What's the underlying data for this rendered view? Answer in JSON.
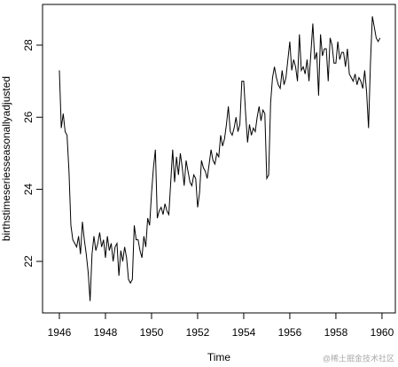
{
  "chart_data": {
    "type": "line",
    "x_label": "Time",
    "y_label": "birthstimeseriesseasonallyadjusted",
    "watermark": "@稀土掘金技术社区",
    "xlim": [
      1945.27,
      1960.58
    ],
    "ylim": [
      20.57,
      29.13
    ],
    "xticks": [
      1946,
      1948,
      1950,
      1952,
      1954,
      1956,
      1958,
      1960
    ],
    "yticks": [
      22,
      24,
      26,
      28
    ],
    "color": "#000000",
    "x": [
      1946,
      1946.083,
      1946.167,
      1946.25,
      1946.333,
      1946.417,
      1946.5,
      1946.583,
      1946.667,
      1946.75,
      1946.833,
      1946.917,
      1947,
      1947.083,
      1947.167,
      1947.25,
      1947.333,
      1947.417,
      1947.5,
      1947.583,
      1947.667,
      1947.75,
      1947.833,
      1947.917,
      1948,
      1948.083,
      1948.167,
      1948.25,
      1948.333,
      1948.417,
      1948.5,
      1948.583,
      1948.667,
      1948.75,
      1948.833,
      1948.917,
      1949,
      1949.083,
      1949.167,
      1949.25,
      1949.333,
      1949.417,
      1949.5,
      1949.583,
      1949.667,
      1949.75,
      1949.833,
      1949.917,
      1950,
      1950.083,
      1950.167,
      1950.25,
      1950.333,
      1950.417,
      1950.5,
      1950.583,
      1950.667,
      1950.75,
      1950.833,
      1950.917,
      1951,
      1951.083,
      1951.167,
      1951.25,
      1951.333,
      1951.417,
      1951.5,
      1951.583,
      1951.667,
      1951.75,
      1951.833,
      1951.917,
      1952,
      1952.083,
      1952.167,
      1952.25,
      1952.333,
      1952.417,
      1952.5,
      1952.583,
      1952.667,
      1952.75,
      1952.833,
      1952.917,
      1953,
      1953.083,
      1953.167,
      1953.25,
      1953.333,
      1953.417,
      1953.5,
      1953.583,
      1953.667,
      1953.75,
      1953.833,
      1953.917,
      1954,
      1954.083,
      1954.167,
      1954.25,
      1954.333,
      1954.417,
      1954.5,
      1954.583,
      1954.667,
      1954.75,
      1954.833,
      1954.917,
      1955,
      1955.083,
      1955.167,
      1955.25,
      1955.333,
      1955.417,
      1955.5,
      1955.583,
      1955.667,
      1955.75,
      1955.833,
      1955.917,
      1956,
      1956.083,
      1956.167,
      1956.25,
      1956.333,
      1956.417,
      1956.5,
      1956.583,
      1956.667,
      1956.75,
      1956.833,
      1956.917,
      1957,
      1957.083,
      1957.167,
      1957.25,
      1957.333,
      1957.417,
      1957.5,
      1957.583,
      1957.667,
      1957.75,
      1957.833,
      1957.917,
      1958,
      1958.083,
      1958.167,
      1958.25,
      1958.333,
      1958.417,
      1958.5,
      1958.583,
      1958.667,
      1958.75,
      1958.833,
      1958.917,
      1959,
      1959.083,
      1959.167,
      1959.25,
      1959.333,
      1959.417,
      1959.5,
      1959.583,
      1959.667,
      1959.75,
      1959.833,
      1959.917
    ],
    "values": [
      27.3,
      25.7,
      26.1,
      25.6,
      25.5,
      24.5,
      23.0,
      22.6,
      22.5,
      22.4,
      22.7,
      22.2,
      23.1,
      22.6,
      22.2,
      21.7,
      20.9,
      22.2,
      22.7,
      22.3,
      22.5,
      22.8,
      22.4,
      22.6,
      22.1,
      22.7,
      22.3,
      22.5,
      22.0,
      22.4,
      22.5,
      21.6,
      22.3,
      22.0,
      22.4,
      22.1,
      21.5,
      21.4,
      21.5,
      23.0,
      22.6,
      22.6,
      22.3,
      22.1,
      22.7,
      22.4,
      23.2,
      23.0,
      23.9,
      24.6,
      25.1,
      23.2,
      23.4,
      23.5,
      23.3,
      23.6,
      23.4,
      23.3,
      24.2,
      25.1,
      24.2,
      24.9,
      24.4,
      25.0,
      24.6,
      24.1,
      24.8,
      24.5,
      24.2,
      24.1,
      24.4,
      24.3,
      23.5,
      23.9,
      24.8,
      24.6,
      24.5,
      24.3,
      24.7,
      25.1,
      24.8,
      24.7,
      25.0,
      24.9,
      25.5,
      25.2,
      25.4,
      25.8,
      26.3,
      25.6,
      25.5,
      25.7,
      26.0,
      25.6,
      25.8,
      27.0,
      27.0,
      26.1,
      25.3,
      25.8,
      25.5,
      25.7,
      25.6,
      26.0,
      26.3,
      25.9,
      26.2,
      26.1,
      24.3,
      24.4,
      26.4,
      27.1,
      27.4,
      27.1,
      26.9,
      26.8,
      27.3,
      26.9,
      27.1,
      27.6,
      28.1,
      27.3,
      27.6,
      27.4,
      27.0,
      28.3,
      27.3,
      27.4,
      27.2,
      27.6,
      27.0,
      27.8,
      28.6,
      27.6,
      27.8,
      26.6,
      28.3,
      27.7,
      27.9,
      27.9,
      27.0,
      28.2,
      28.0,
      27.5,
      27.5,
      28.1,
      27.6,
      27.8,
      27.8,
      27.4,
      27.9,
      27.2,
      27.1,
      27.0,
      27.2,
      26.9,
      27.1,
      27.0,
      26.8,
      27.3,
      26.7,
      25.7,
      27.5,
      28.8,
      28.5,
      28.2,
      28.1,
      28.2
    ]
  }
}
